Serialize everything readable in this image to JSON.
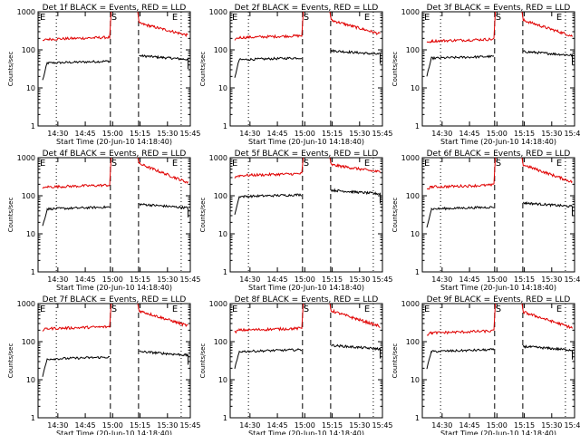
{
  "figure": {
    "xlabel": "Start Time (20-Jun-10 14:18:40)",
    "ylabel": "Counts/sec",
    "x_tick_labels": [
      "14:30",
      "14:45",
      "15:00",
      "15:15",
      "15:30",
      "15:45"
    ],
    "y_tick_labels": [
      "1",
      "10",
      "100",
      "1000"
    ],
    "event_labels": [
      "E",
      "S",
      "E"
    ],
    "colors": {
      "events": "#000000",
      "lld": "#e00000",
      "axes": "#000000"
    }
  },
  "chart_data": [
    {
      "type": "line",
      "title": "Det 1f BLACK = Events, RED = LLD",
      "ylim": [
        1,
        1000
      ],
      "yscale": "log",
      "series": [
        {
          "name": "Events",
          "color": "#000000",
          "level_pre": 45,
          "level_post": 70
        },
        {
          "name": "LLD",
          "color": "#e00000",
          "level_pre": 190,
          "level_post": 330,
          "flare_peak": 500,
          "end_level": 240
        }
      ]
    },
    {
      "type": "line",
      "title": "Det 2f BLACK = Events, RED = LLD",
      "ylim": [
        1,
        1000
      ],
      "yscale": "log",
      "series": [
        {
          "name": "Events",
          "color": "#000000",
          "level_pre": 55,
          "level_post": 95
        },
        {
          "name": "LLD",
          "color": "#e00000",
          "level_pre": 210,
          "level_post": 380,
          "flare_peak": 600,
          "end_level": 260
        }
      ]
    },
    {
      "type": "line",
      "title": "Det 3f BLACK = Events, RED = LLD",
      "ylim": [
        1,
        1000
      ],
      "yscale": "log",
      "series": [
        {
          "name": "Events",
          "color": "#000000",
          "level_pre": 60,
          "level_post": 90
        },
        {
          "name": "LLD",
          "color": "#e00000",
          "level_pre": 170,
          "level_post": 360,
          "flare_peak": 600,
          "end_level": 230
        }
      ]
    },
    {
      "type": "line",
      "title": "Det 4f BLACK = Events, RED = LLD",
      "ylim": [
        1,
        1000
      ],
      "yscale": "log",
      "series": [
        {
          "name": "Events",
          "color": "#000000",
          "level_pre": 45,
          "level_post": 60
        },
        {
          "name": "LLD",
          "color": "#e00000",
          "level_pre": 170,
          "level_post": 350,
          "flare_peak": 700,
          "end_level": 220
        }
      ]
    },
    {
      "type": "line",
      "title": "Det 5f BLACK = Events, RED = LLD",
      "ylim": [
        1,
        1000
      ],
      "yscale": "log",
      "series": [
        {
          "name": "Events",
          "color": "#000000",
          "level_pre": 95,
          "level_post": 140
        },
        {
          "name": "LLD",
          "color": "#e00000",
          "level_pre": 340,
          "level_post": 600,
          "flare_peak": 650,
          "end_level": 420
        }
      ]
    },
    {
      "type": "line",
      "title": "Det 6f BLACK = Events, RED = LLD",
      "ylim": [
        1,
        1000
      ],
      "yscale": "log",
      "series": [
        {
          "name": "Events",
          "color": "#000000",
          "level_pre": 45,
          "level_post": 65
        },
        {
          "name": "LLD",
          "color": "#e00000",
          "level_pre": 170,
          "level_post": 360,
          "flare_peak": 650,
          "end_level": 230
        }
      ]
    },
    {
      "type": "line",
      "title": "Det 7f BLACK = Events, RED = LLD",
      "ylim": [
        1,
        1000
      ],
      "yscale": "log",
      "series": [
        {
          "name": "Events",
          "color": "#000000",
          "level_pre": 35,
          "level_post": 55
        },
        {
          "name": "LLD",
          "color": "#e00000",
          "level_pre": 220,
          "level_post": 380,
          "flare_peak": 650,
          "end_level": 260
        }
      ]
    },
    {
      "type": "line",
      "title": "Det 8f BLACK = Events, RED = LLD",
      "ylim": [
        1,
        1000
      ],
      "yscale": "log",
      "series": [
        {
          "name": "Events",
          "color": "#000000",
          "level_pre": 55,
          "level_post": 80
        },
        {
          "name": "LLD",
          "color": "#e00000",
          "level_pre": 200,
          "level_post": 400,
          "flare_peak": 650,
          "end_level": 250
        }
      ]
    },
    {
      "type": "line",
      "title": "Det 9f BLACK = Events, RED = LLD",
      "ylim": [
        1,
        1000
      ],
      "yscale": "log",
      "series": [
        {
          "name": "Events",
          "color": "#000000",
          "level_pre": 55,
          "level_post": 75
        },
        {
          "name": "LLD",
          "color": "#e00000",
          "level_pre": 170,
          "level_post": 330,
          "flare_peak": 600,
          "end_level": 230
        }
      ]
    }
  ]
}
